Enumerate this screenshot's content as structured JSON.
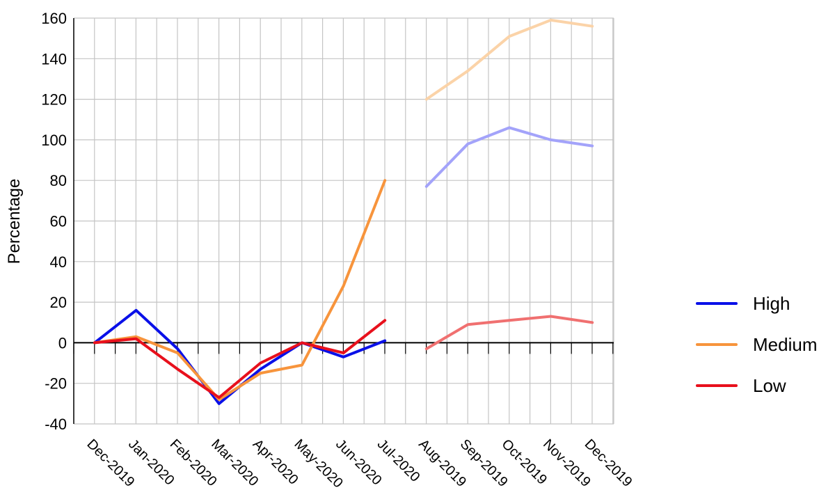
{
  "chart_data": {
    "type": "line",
    "ylabel": "Percentage",
    "ylim": [
      -40,
      160
    ],
    "yticks": [
      -40,
      -20,
      0,
      20,
      40,
      60,
      80,
      100,
      120,
      140,
      160
    ],
    "grid": true,
    "legend_position": "right",
    "categories": [
      "Dec-2019",
      "Jan-2020",
      "Feb-2020",
      "Mar-2020",
      "Apr-2020",
      "May-2020",
      "Jun-2020",
      "Jul-2020",
      "Aug-2019",
      "Sep-2019",
      "Oct-2019",
      "Nov-2019",
      "Dec-2019"
    ],
    "series": [
      {
        "name": "High",
        "color": "#0a10e8",
        "faded_color": "#a3a3fa",
        "values": [
          0,
          16,
          -3,
          -30,
          -13,
          0,
          -7,
          1,
          77,
          98,
          106,
          100,
          97
        ]
      },
      {
        "name": "Medium",
        "color": "#f7943c",
        "faded_color": "#fbd3a8",
        "values": [
          0,
          3,
          -5,
          -28,
          -15,
          -11,
          28,
          80,
          120,
          134,
          151,
          159,
          156
        ]
      },
      {
        "name": "Low",
        "color": "#e8101c",
        "faded_color": "#f07070",
        "values": [
          0,
          2,
          -13,
          -27,
          -10,
          0,
          -5,
          11,
          -3,
          9,
          11,
          13,
          10
        ]
      }
    ],
    "segments": [
      {
        "from_index": 0,
        "to_index": 7,
        "style": "solid"
      },
      {
        "from_index": 8,
        "to_index": 12,
        "style": "faded"
      }
    ]
  }
}
